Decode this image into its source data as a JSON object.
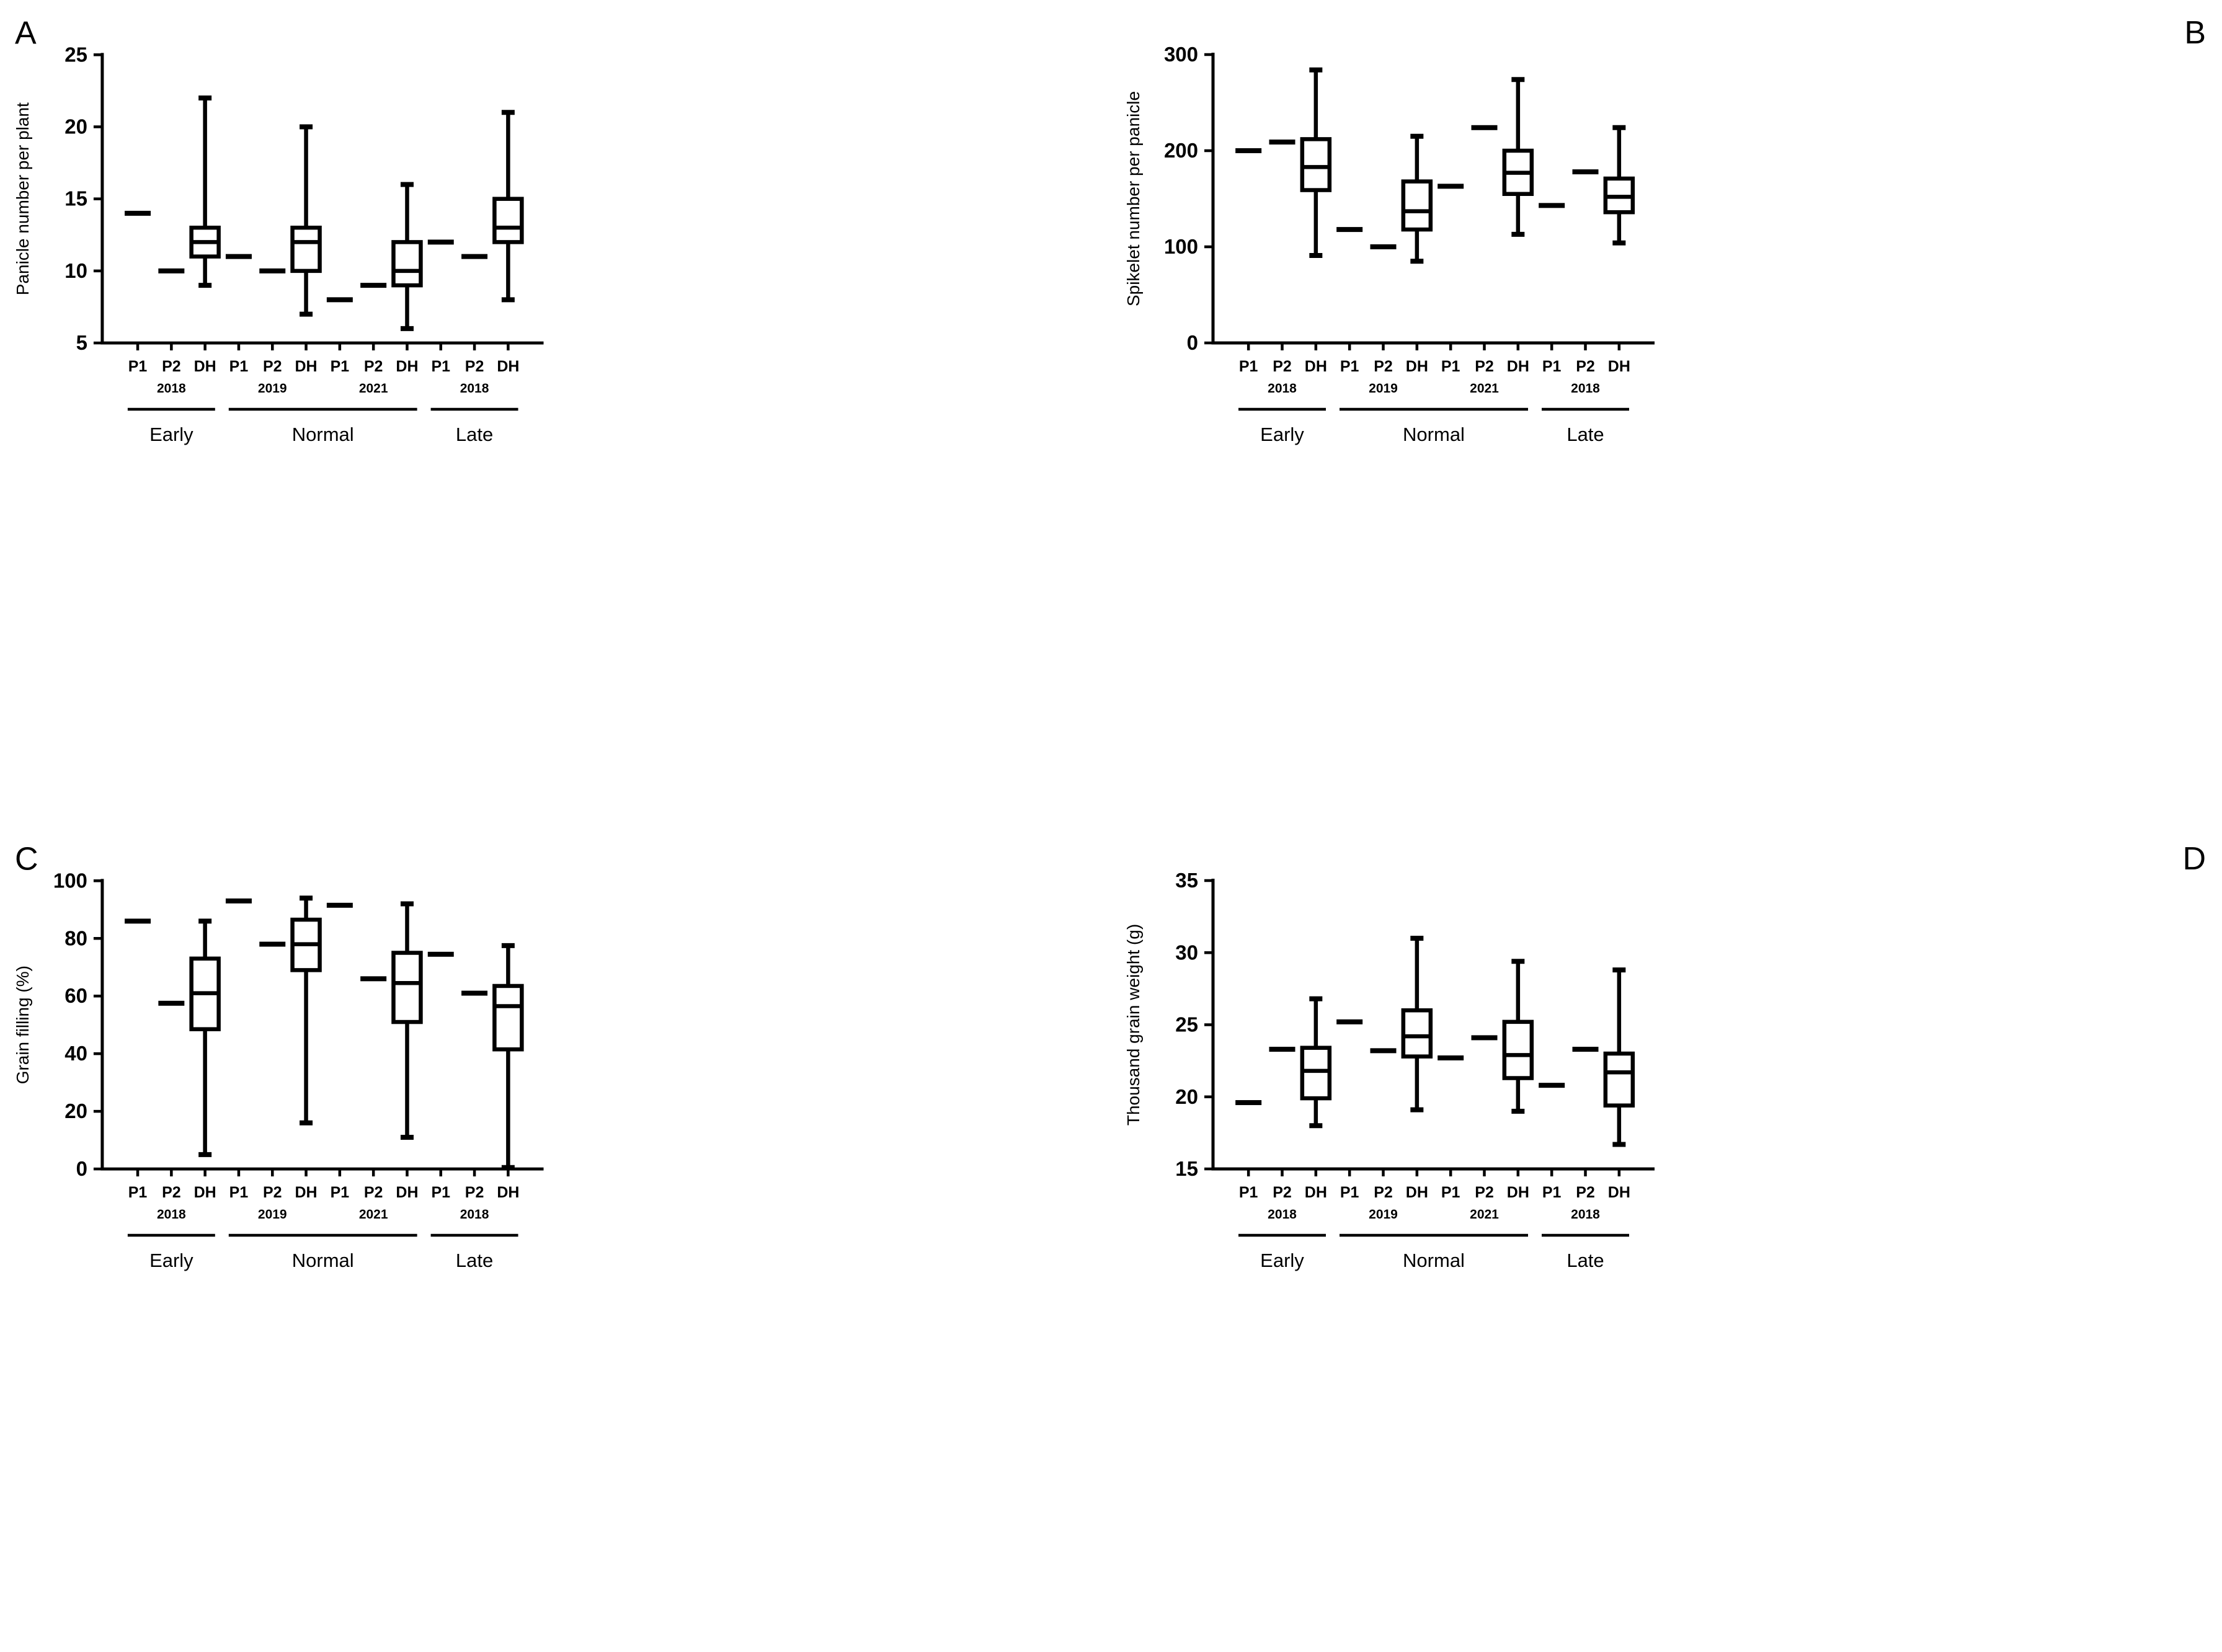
{
  "figure": {
    "background": "#ffffff",
    "ink": "#000000"
  },
  "chart_data": [
    {
      "type": "box",
      "letter": "A",
      "letter_side": "left",
      "ylabel": "Panicle number per plant",
      "ylim": [
        5,
        25
      ],
      "yticks": [
        5,
        10,
        15,
        20,
        25
      ],
      "grid": false,
      "groups": [
        {
          "label": "Early",
          "years": [
            {
              "year": "2018",
              "columns": [
                {
                  "label": "P1",
                  "type": "mean",
                  "value": 14
                },
                {
                  "label": "P2",
                  "type": "mean",
                  "value": 10
                },
                {
                  "label": "DH",
                  "type": "box",
                  "min": 9,
                  "q1": 11,
                  "median": 12,
                  "q3": 13,
                  "max": 22
                }
              ]
            }
          ]
        },
        {
          "label": "Normal",
          "years": [
            {
              "year": "2019",
              "columns": [
                {
                  "label": "P1",
                  "type": "mean",
                  "value": 11
                },
                {
                  "label": "P2",
                  "type": "mean",
                  "value": 10
                },
                {
                  "label": "DH",
                  "type": "box",
                  "min": 7,
                  "q1": 10,
                  "median": 12,
                  "q3": 13,
                  "max": 20
                }
              ]
            },
            {
              "year": "2021",
              "columns": [
                {
                  "label": "P1",
                  "type": "mean",
                  "value": 8
                },
                {
                  "label": "P2",
                  "type": "mean",
                  "value": 9
                },
                {
                  "label": "DH",
                  "type": "box",
                  "min": 6,
                  "q1": 9,
                  "median": 10,
                  "q3": 12,
                  "max": 16
                }
              ]
            }
          ]
        },
        {
          "label": "Late",
          "years": [
            {
              "year": "2018",
              "columns": [
                {
                  "label": "P1",
                  "type": "mean",
                  "value": 12
                },
                {
                  "label": "P2",
                  "type": "mean",
                  "value": 11
                },
                {
                  "label": "DH",
                  "type": "box",
                  "min": 8,
                  "q1": 12,
                  "median": 13,
                  "q3": 15,
                  "max": 21
                }
              ]
            }
          ]
        }
      ]
    },
    {
      "type": "box",
      "letter": "B",
      "letter_side": "right",
      "ylabel": "Spikelet number per panicle",
      "ylim": [
        0,
        300
      ],
      "yticks": [
        0,
        100,
        200,
        300
      ],
      "grid": false,
      "groups": [
        {
          "label": "Early",
          "years": [
            {
              "year": "2018",
              "columns": [
                {
                  "label": "P1",
                  "type": "mean",
                  "value": 200
                },
                {
                  "label": "P2",
                  "type": "mean",
                  "value": 209
                },
                {
                  "label": "DH",
                  "type": "box",
                  "min": 91,
                  "q1": 159,
                  "median": 183,
                  "q3": 212,
                  "max": 284
                }
              ]
            }
          ]
        },
        {
          "label": "Normal",
          "years": [
            {
              "year": "2019",
              "columns": [
                {
                  "label": "P1",
                  "type": "mean",
                  "value": 118
                },
                {
                  "label": "P2",
                  "type": "mean",
                  "value": 100
                },
                {
                  "label": "DH",
                  "type": "box",
                  "min": 85,
                  "q1": 118,
                  "median": 137,
                  "q3": 168,
                  "max": 215
                }
              ]
            },
            {
              "year": "2021",
              "columns": [
                {
                  "label": "P1",
                  "type": "mean",
                  "value": 163
                },
                {
                  "label": "P2",
                  "type": "mean",
                  "value": 224
                },
                {
                  "label": "DH",
                  "type": "box",
                  "min": 113,
                  "q1": 155,
                  "median": 177,
                  "q3": 200,
                  "max": 274
                }
              ]
            }
          ]
        },
        {
          "label": "Late",
          "years": [
            {
              "year": "2018",
              "columns": [
                {
                  "label": "P1",
                  "type": "mean",
                  "value": 143
                },
                {
                  "label": "P2",
                  "type": "mean",
                  "value": 178
                },
                {
                  "label": "DH",
                  "type": "box",
                  "min": 104,
                  "q1": 136,
                  "median": 152,
                  "q3": 171,
                  "max": 224
                }
              ]
            }
          ]
        }
      ]
    },
    {
      "type": "box",
      "letter": "C",
      "letter_side": "left",
      "ylabel": "Grain filling (%)",
      "ylim": [
        0,
        100
      ],
      "yticks": [
        0,
        20,
        40,
        60,
        80,
        100
      ],
      "grid": false,
      "groups": [
        {
          "label": "Early",
          "years": [
            {
              "year": "2018",
              "columns": [
                {
                  "label": "P1",
                  "type": "mean",
                  "value": 86
                },
                {
                  "label": "P2",
                  "type": "mean",
                  "value": 57.5
                },
                {
                  "label": "DH",
                  "type": "box",
                  "min": 5,
                  "q1": 48.5,
                  "median": 61,
                  "q3": 73,
                  "max": 86
                }
              ]
            }
          ]
        },
        {
          "label": "Normal",
          "years": [
            {
              "year": "2019",
              "columns": [
                {
                  "label": "P1",
                  "type": "mean",
                  "value": 93
                },
                {
                  "label": "P2",
                  "type": "mean",
                  "value": 78
                },
                {
                  "label": "DH",
                  "type": "box",
                  "min": 16,
                  "q1": 69,
                  "median": 78,
                  "q3": 86.5,
                  "max": 94
                }
              ]
            },
            {
              "year": "2021",
              "columns": [
                {
                  "label": "P1",
                  "type": "mean",
                  "value": 91.5
                },
                {
                  "label": "P2",
                  "type": "mean",
                  "value": 66
                },
                {
                  "label": "DH",
                  "type": "box",
                  "min": 11,
                  "q1": 51,
                  "median": 64.5,
                  "q3": 75,
                  "max": 92
                }
              ]
            }
          ]
        },
        {
          "label": "Late",
          "years": [
            {
              "year": "2018",
              "columns": [
                {
                  "label": "P1",
                  "type": "mean",
                  "value": 74.5
                },
                {
                  "label": "P2",
                  "type": "mean",
                  "value": 61
                },
                {
                  "label": "DH",
                  "type": "box",
                  "min": 0.5,
                  "q1": 41.5,
                  "median": 56.5,
                  "q3": 63.5,
                  "max": 77.5
                }
              ]
            }
          ]
        }
      ]
    },
    {
      "type": "box",
      "letter": "D",
      "letter_side": "right",
      "ylabel": "Thousand grain weight (g)",
      "ylim": [
        15,
        35
      ],
      "yticks": [
        15,
        20,
        25,
        30,
        35
      ],
      "grid": false,
      "groups": [
        {
          "label": "Early",
          "years": [
            {
              "year": "2018",
              "columns": [
                {
                  "label": "P1",
                  "type": "mean",
                  "value": 19.6
                },
                {
                  "label": "P2",
                  "type": "mean",
                  "value": 23.3
                },
                {
                  "label": "DH",
                  "type": "box",
                  "min": 18.0,
                  "q1": 19.9,
                  "median": 21.8,
                  "q3": 23.4,
                  "max": 26.8
                }
              ]
            }
          ]
        },
        {
          "label": "Normal",
          "years": [
            {
              "year": "2019",
              "columns": [
                {
                  "label": "P1",
                  "type": "mean",
                  "value": 25.2
                },
                {
                  "label": "P2",
                  "type": "mean",
                  "value": 23.2
                },
                {
                  "label": "DH",
                  "type": "box",
                  "min": 19.1,
                  "q1": 22.8,
                  "median": 24.2,
                  "q3": 26.0,
                  "max": 31.0
                }
              ]
            },
            {
              "year": "2021",
              "columns": [
                {
                  "label": "P1",
                  "type": "mean",
                  "value": 22.7
                },
                {
                  "label": "P2",
                  "type": "mean",
                  "value": 24.1
                },
                {
                  "label": "DH",
                  "type": "box",
                  "min": 19.0,
                  "q1": 21.3,
                  "median": 22.9,
                  "q3": 25.2,
                  "max": 29.4
                }
              ]
            }
          ]
        },
        {
          "label": "Late",
          "years": [
            {
              "year": "2018",
              "columns": [
                {
                  "label": "P1",
                  "type": "mean",
                  "value": 20.8
                },
                {
                  "label": "P2",
                  "type": "mean",
                  "value": 23.3
                },
                {
                  "label": "DH",
                  "type": "box",
                  "min": 16.7,
                  "q1": 19.4,
                  "median": 21.7,
                  "q3": 23.0,
                  "max": 28.8
                }
              ]
            }
          ]
        }
      ]
    }
  ]
}
